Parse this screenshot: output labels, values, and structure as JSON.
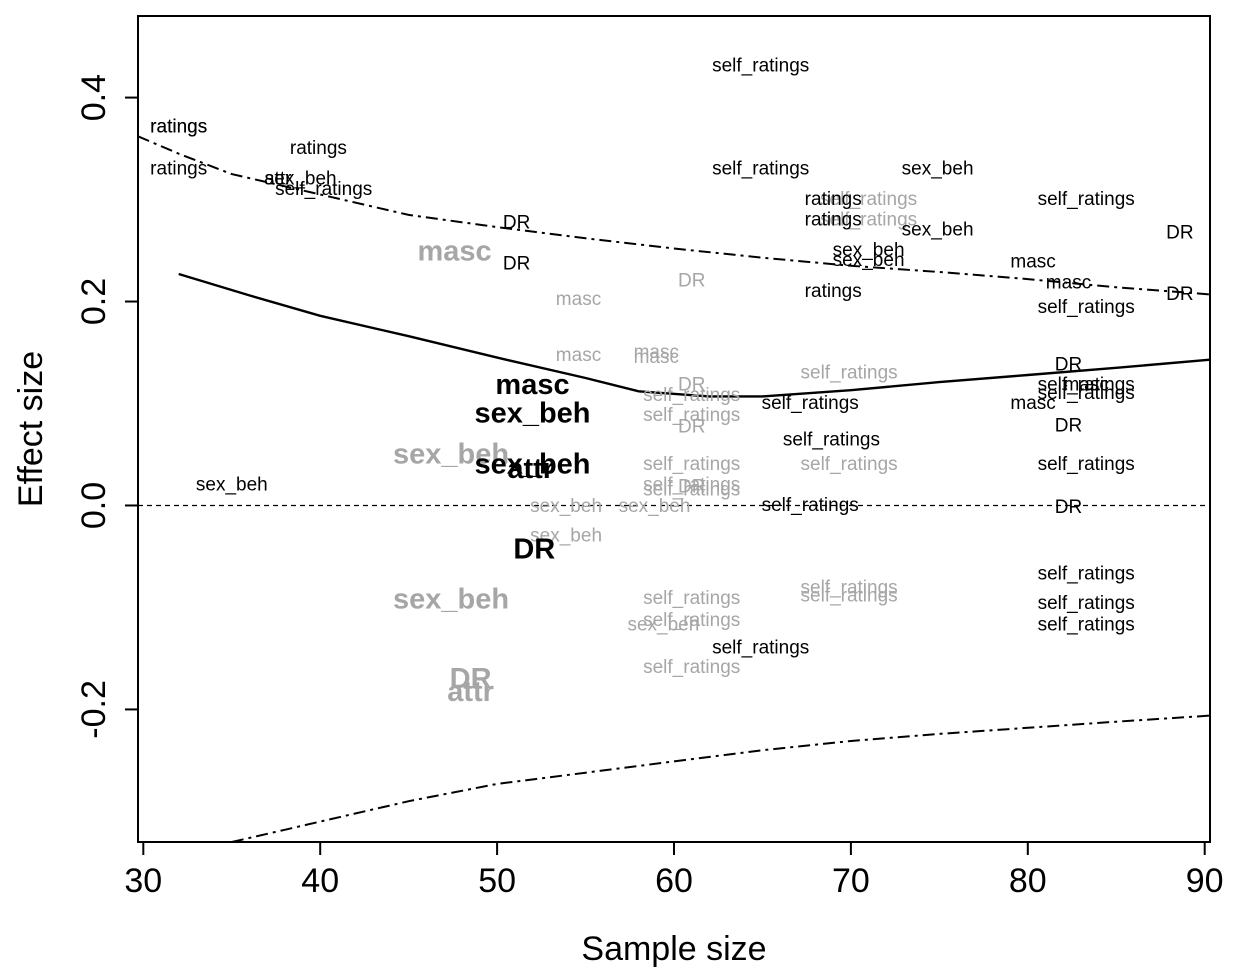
{
  "chart_data": {
    "type": "scatter",
    "title": "",
    "xlabel": "Sample size",
    "ylabel": "Effect size",
    "xlim": [
      29.7,
      90.3
    ],
    "ylim": [
      -0.33,
      0.48
    ],
    "xticks": [
      30,
      40,
      50,
      60,
      70,
      80,
      90
    ],
    "yticks": [
      -0.2,
      0.0,
      0.2,
      0.4
    ],
    "ytick_labels": [
      "-0.2",
      "0.0",
      "0.2",
      "0.4"
    ],
    "grid": false,
    "legend": "none",
    "reference_line": {
      "y": 0,
      "style": "dashed"
    },
    "colors": {
      "black": "#000000",
      "gray": "#a6a6a6"
    },
    "curves": [
      {
        "style": "solid",
        "x": [
          32,
          36,
          40,
          45,
          50,
          55,
          58,
          62,
          65,
          70,
          75,
          80,
          85,
          90.3
        ],
        "y": [
          0.227,
          0.206,
          0.186,
          0.166,
          0.145,
          0.125,
          0.112,
          0.107,
          0.107,
          0.113,
          0.121,
          0.128,
          0.135,
          0.143
        ]
      },
      {
        "style": "dotdash",
        "x": [
          29.7,
          32,
          35,
          38,
          40,
          45,
          50,
          55,
          60,
          65,
          70,
          75,
          80,
          85,
          90.3
        ],
        "y": [
          0.362,
          0.345,
          0.325,
          0.313,
          0.305,
          0.285,
          0.273,
          0.262,
          0.252,
          0.243,
          0.235,
          0.229,
          0.222,
          0.214,
          0.207
        ]
      },
      {
        "style": "dotdash",
        "x": [
          35,
          38,
          40,
          45,
          50,
          55,
          60,
          65,
          70,
          75,
          80,
          85,
          90.3
        ],
        "y": [
          -0.33,
          -0.318,
          -0.31,
          -0.29,
          -0.273,
          -0.262,
          -0.251,
          -0.24,
          -0.231,
          -0.224,
          -0.218,
          -0.212,
          -0.206
        ]
      }
    ],
    "points": [
      {
        "label": "self_ratings",
        "x": 64.9,
        "y": 0.431,
        "color": "black",
        "size": "small"
      },
      {
        "label": "ratings",
        "x": 32.0,
        "y": 0.371,
        "color": "black",
        "size": "small"
      },
      {
        "label": "ratings",
        "x": 32.0,
        "y": 0.371,
        "color": "black",
        "size": "small"
      },
      {
        "label": "ratings",
        "x": 39.9,
        "y": 0.35,
        "color": "black",
        "size": "small"
      },
      {
        "label": "ratings",
        "x": 32.0,
        "y": 0.33,
        "color": "black",
        "size": "small"
      },
      {
        "label": "self_ratings",
        "x": 64.9,
        "y": 0.33,
        "color": "black",
        "size": "small"
      },
      {
        "label": "sex_beh",
        "x": 74.9,
        "y": 0.33,
        "color": "black",
        "size": "small"
      },
      {
        "label": "sex_beh",
        "x": 38.9,
        "y": 0.32,
        "color": "black",
        "size": "small"
      },
      {
        "label": "attr",
        "x": 37.6,
        "y": 0.32,
        "color": "black",
        "size": "small"
      },
      {
        "label": "self_ratings",
        "x": 40.2,
        "y": 0.31,
        "color": "black",
        "size": "small"
      },
      {
        "label": "self_ratings",
        "x": 71.0,
        "y": 0.3,
        "color": "gray",
        "size": "small"
      },
      {
        "label": "ratings",
        "x": 69.0,
        "y": 0.3,
        "color": "black",
        "size": "small"
      },
      {
        "label": "self_ratings",
        "x": 83.3,
        "y": 0.3,
        "color": "black",
        "size": "small"
      },
      {
        "label": "self_ratings",
        "x": 71.0,
        "y": 0.28,
        "color": "gray",
        "size": "small"
      },
      {
        "label": "ratings",
        "x": 69.0,
        "y": 0.28,
        "color": "black",
        "size": "small"
      },
      {
        "label": "sex_beh",
        "x": 74.9,
        "y": 0.27,
        "color": "black",
        "size": "small"
      },
      {
        "label": "DR",
        "x": 88.6,
        "y": 0.267,
        "color": "black",
        "size": "small"
      },
      {
        "label": "DR",
        "x": 51.1,
        "y": 0.277,
        "color": "black",
        "size": "small"
      },
      {
        "label": "masc",
        "x": 47.6,
        "y": 0.249,
        "color": "gray",
        "size": "big"
      },
      {
        "label": "sex_beh",
        "x": 71.0,
        "y": 0.25,
        "color": "black",
        "size": "small"
      },
      {
        "label": "DR",
        "x": 51.1,
        "y": 0.237,
        "color": "black",
        "size": "small"
      },
      {
        "label": "sex_beh",
        "x": 71.0,
        "y": 0.24,
        "color": "black",
        "size": "small"
      },
      {
        "label": "masc",
        "x": 80.3,
        "y": 0.239,
        "color": "black",
        "size": "small"
      },
      {
        "label": "DR",
        "x": 61.0,
        "y": 0.22,
        "color": "gray",
        "size": "small"
      },
      {
        "label": "masc",
        "x": 82.3,
        "y": 0.218,
        "color": "black",
        "size": "small"
      },
      {
        "label": "DR",
        "x": 88.6,
        "y": 0.207,
        "color": "black",
        "size": "small"
      },
      {
        "label": "ratings",
        "x": 69.0,
        "y": 0.21,
        "color": "black",
        "size": "small"
      },
      {
        "label": "masc",
        "x": 54.6,
        "y": 0.202,
        "color": "gray",
        "size": "small"
      },
      {
        "label": "self_ratings",
        "x": 83.3,
        "y": 0.194,
        "color": "black",
        "size": "small"
      },
      {
        "label": "masc",
        "x": 54.6,
        "y": 0.147,
        "color": "gray",
        "size": "small"
      },
      {
        "label": "masc",
        "x": 59.0,
        "y": 0.15,
        "color": "gray",
        "size": "small"
      },
      {
        "label": "masc",
        "x": 59.0,
        "y": 0.145,
        "color": "gray",
        "size": "small"
      },
      {
        "label": "DR",
        "x": 82.3,
        "y": 0.138,
        "color": "black",
        "size": "small"
      },
      {
        "label": "self_ratings",
        "x": 69.9,
        "y": 0.13,
        "color": "gray",
        "size": "small"
      },
      {
        "label": "masc",
        "x": 52.0,
        "y": 0.118,
        "color": "black",
        "size": "big"
      },
      {
        "label": "DR",
        "x": 61.0,
        "y": 0.118,
        "color": "gray",
        "size": "small"
      },
      {
        "label": "self_ratings",
        "x": 83.3,
        "y": 0.118,
        "color": "black",
        "size": "small"
      },
      {
        "label": "masc",
        "x": 83.3,
        "y": 0.118,
        "color": "black",
        "size": "small"
      },
      {
        "label": "self_ratings",
        "x": 83.3,
        "y": 0.11,
        "color": "black",
        "size": "small"
      },
      {
        "label": "self_ratings",
        "x": 61.0,
        "y": 0.108,
        "color": "gray",
        "size": "small"
      },
      {
        "label": "self_ratings",
        "x": 67.7,
        "y": 0.1,
        "color": "black",
        "size": "small"
      },
      {
        "label": "masc",
        "x": 80.3,
        "y": 0.1,
        "color": "black",
        "size": "small"
      },
      {
        "label": "sex_beh",
        "x": 52.0,
        "y": 0.09,
        "color": "black",
        "size": "big"
      },
      {
        "label": "self_ratings",
        "x": 61.0,
        "y": 0.088,
        "color": "gray",
        "size": "small"
      },
      {
        "label": "DR",
        "x": 82.3,
        "y": 0.078,
        "color": "black",
        "size": "small"
      },
      {
        "label": "DR",
        "x": 61.0,
        "y": 0.077,
        "color": "gray",
        "size": "small"
      },
      {
        "label": "self_ratings",
        "x": 68.9,
        "y": 0.064,
        "color": "black",
        "size": "small"
      },
      {
        "label": "sex_beh",
        "x": 47.4,
        "y": 0.05,
        "color": "gray",
        "size": "big"
      },
      {
        "label": "sex_beh",
        "x": 52.0,
        "y": 0.04,
        "color": "black",
        "size": "big"
      },
      {
        "label": "attr",
        "x": 51.9,
        "y": 0.036,
        "color": "black",
        "size": "big"
      },
      {
        "label": "self_ratings",
        "x": 61.0,
        "y": 0.04,
        "color": "gray",
        "size": "small"
      },
      {
        "label": "self_ratings",
        "x": 69.9,
        "y": 0.04,
        "color": "gray",
        "size": "small"
      },
      {
        "label": "self_ratings",
        "x": 83.3,
        "y": 0.04,
        "color": "black",
        "size": "small"
      },
      {
        "label": "self_ratings",
        "x": 61.0,
        "y": 0.02,
        "color": "gray",
        "size": "small"
      },
      {
        "label": "DR",
        "x": 61.0,
        "y": 0.018,
        "color": "gray",
        "size": "small"
      },
      {
        "label": "self_ratings",
        "x": 61.0,
        "y": 0.015,
        "color": "gray",
        "size": "small"
      },
      {
        "label": "sex_beh",
        "x": 35.0,
        "y": 0.02,
        "color": "black",
        "size": "small"
      },
      {
        "label": "sex_beh",
        "x": 53.9,
        "y": -0.001,
        "color": "gray",
        "size": "small"
      },
      {
        "label": "sex_beh",
        "x": 58.9,
        "y": -0.001,
        "color": "gray",
        "size": "small"
      },
      {
        "label": "self_ratings",
        "x": 67.7,
        "y": 0.0,
        "color": "black",
        "size": "small"
      },
      {
        "label": "DR",
        "x": 82.3,
        "y": -0.002,
        "color": "black",
        "size": "small"
      },
      {
        "label": "sex_beh",
        "x": 53.9,
        "y": -0.03,
        "color": "gray",
        "size": "small"
      },
      {
        "label": "DR",
        "x": 52.1,
        "y": -0.043,
        "color": "black",
        "size": "big"
      },
      {
        "label": "self_ratings",
        "x": 83.3,
        "y": -0.067,
        "color": "black",
        "size": "small"
      },
      {
        "label": "self_ratings",
        "x": 69.9,
        "y": -0.081,
        "color": "gray",
        "size": "small"
      },
      {
        "label": "self_ratings",
        "x": 69.9,
        "y": -0.089,
        "color": "gray",
        "size": "small"
      },
      {
        "label": "sex_beh",
        "x": 47.4,
        "y": -0.092,
        "color": "gray",
        "size": "big"
      },
      {
        "label": "self_ratings",
        "x": 61.0,
        "y": -0.091,
        "color": "gray",
        "size": "small"
      },
      {
        "label": "self_ratings",
        "x": 83.3,
        "y": -0.096,
        "color": "black",
        "size": "small"
      },
      {
        "label": "self_ratings",
        "x": 61.0,
        "y": -0.113,
        "color": "gray",
        "size": "small"
      },
      {
        "label": "sex_beh",
        "x": 59.4,
        "y": -0.117,
        "color": "gray",
        "size": "small"
      },
      {
        "label": "self_ratings",
        "x": 83.3,
        "y": -0.117,
        "color": "black",
        "size": "small"
      },
      {
        "label": "self_ratings",
        "x": 64.9,
        "y": -0.14,
        "color": "black",
        "size": "small"
      },
      {
        "label": "self_ratings",
        "x": 61.0,
        "y": -0.159,
        "color": "gray",
        "size": "small"
      },
      {
        "label": "DR",
        "x": 48.5,
        "y": -0.17,
        "color": "gray",
        "size": "big"
      },
      {
        "label": "attr",
        "x": 48.5,
        "y": -0.183,
        "color": "gray",
        "size": "big"
      }
    ]
  }
}
